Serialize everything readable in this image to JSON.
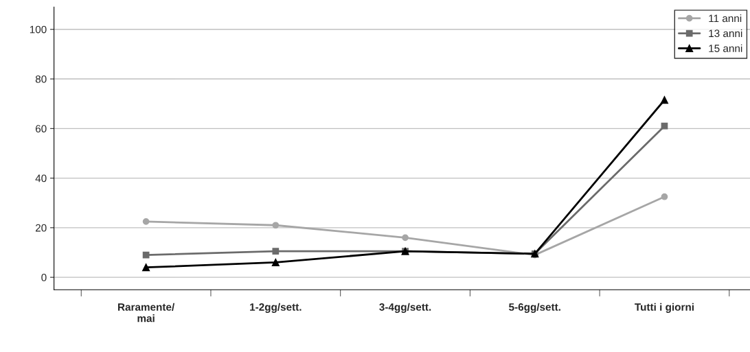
{
  "chart_data": {
    "type": "line",
    "categories": [
      "Raramente/\nmai",
      "1-2gg/sett.",
      "3-4gg/sett.",
      "5-6gg/sett.",
      "Tutti i giorni"
    ],
    "series": [
      {
        "name": "11 anni",
        "color": "#a6a6a6",
        "marker": "circle",
        "values": [
          22.5,
          21,
          16,
          9,
          32.5
        ]
      },
      {
        "name": "13 anni",
        "color": "#6b6b6b",
        "marker": "square",
        "values": [
          9,
          10.5,
          10.5,
          9.5,
          61
        ]
      },
      {
        "name": "15 anni",
        "color": "#000000",
        "marker": "triangle",
        "values": [
          4,
          6,
          10.5,
          9.5,
          71.5
        ]
      }
    ],
    "ylim": [
      -5,
      109
    ],
    "yticks": [
      0,
      20,
      40,
      60,
      80,
      100
    ],
    "grid": "y",
    "legend": "top right",
    "line_style": "solid"
  }
}
